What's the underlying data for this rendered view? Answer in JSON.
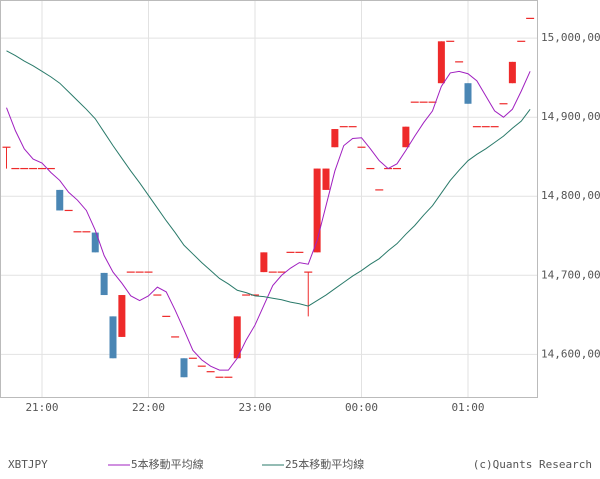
{
  "chart_data": {
    "type": "candlestick",
    "symbol": "XBTJPY",
    "credit": "(c)Quants Research",
    "categories": [
      null,
      null,
      null,
      null,
      "21:00",
      null,
      null,
      null,
      null,
      null,
      null,
      null,
      null,
      null,
      null,
      null,
      "22:00",
      null,
      null,
      null,
      null,
      null,
      null,
      null,
      null,
      null,
      null,
      null,
      "23:00",
      null,
      null,
      null,
      null,
      null,
      null,
      null,
      null,
      null,
      null,
      null,
      "00:00",
      null,
      null,
      null,
      null,
      null,
      null,
      null,
      null,
      null,
      null,
      null,
      "01:00",
      null,
      null,
      null,
      null,
      null,
      null,
      null
    ],
    "open": [
      14862,
      14835,
      14835,
      14835,
      14835,
      14835,
      14808,
      14782,
      14755,
      14755,
      14754,
      14703,
      14648,
      14622,
      14704,
      14704,
      14704,
      14675,
      14648,
      14622,
      14595,
      14595,
      14585,
      14578,
      14571,
      14571,
      14595,
      14675,
      14675,
      14704,
      14704,
      14704,
      14729,
      14729,
      14704,
      14729,
      14808,
      14862,
      14888,
      14888,
      14862,
      14835,
      14808,
      14835,
      14835,
      14862,
      14919,
      14919,
      14919,
      14943,
      14996,
      14970,
      14943,
      14888,
      14888,
      14888,
      14917,
      14943,
      14996,
      15025
    ],
    "high": [
      14862,
      14835,
      14835,
      14835,
      14835,
      14835,
      14808,
      14782,
      14755,
      14755,
      14754,
      14703,
      14648,
      14675,
      14704,
      14704,
      14704,
      14675,
      14648,
      14622,
      14595,
      14595,
      14585,
      14578,
      14571,
      14571,
      14648,
      14675,
      14675,
      14729,
      14704,
      14704,
      14729,
      14729,
      14704,
      14835,
      14835,
      14885,
      14888,
      14888,
      14862,
      14835,
      14808,
      14835,
      14835,
      14888,
      14919,
      14919,
      14919,
      14996,
      14996,
      14970,
      14943,
      14888,
      14888,
      14888,
      14917,
      14970,
      14996,
      15025
    ],
    "low": [
      14835,
      14835,
      14835,
      14835,
      14835,
      14835,
      14782,
      14782,
      14755,
      14755,
      14729,
      14675,
      14595,
      14622,
      14704,
      14704,
      14704,
      14675,
      14648,
      14622,
      14571,
      14595,
      14585,
      14578,
      14571,
      14571,
      14595,
      14675,
      14675,
      14704,
      14704,
      14704,
      14729,
      14729,
      14648,
      14729,
      14808,
      14862,
      14888,
      14888,
      14862,
      14835,
      14808,
      14835,
      14835,
      14862,
      14919,
      14919,
      14919,
      14943,
      14996,
      14970,
      14917,
      14888,
      14888,
      14888,
      14917,
      14943,
      14996,
      15025
    ],
    "close": [
      14862,
      14835,
      14835,
      14835,
      14835,
      14835,
      14782,
      14782,
      14755,
      14755,
      14729,
      14675,
      14595,
      14675,
      14704,
      14704,
      14704,
      14675,
      14648,
      14622,
      14571,
      14595,
      14585,
      14578,
      14571,
      14571,
      14648,
      14675,
      14675,
      14729,
      14704,
      14704,
      14729,
      14729,
      14704,
      14835,
      14835,
      14885,
      14888,
      14888,
      14862,
      14835,
      14808,
      14835,
      14835,
      14888,
      14919,
      14919,
      14919,
      14996,
      14996,
      14970,
      14917,
      14888,
      14888,
      14888,
      14917,
      14970,
      14996,
      15025
    ],
    "up_color": "#ee2a2a",
    "down_color": "#4a86b4",
    "series": [
      {
        "name": "5本移動平均線",
        "color": "#a020c0",
        "values": [
          14912,
          14883,
          14860,
          14847,
          14842,
          14830,
          14820,
          14805,
          14795,
          14782,
          14757,
          14725,
          14704,
          14690,
          14674,
          14668,
          14674,
          14685,
          14679,
          14656,
          14631,
          14605,
          14593,
          14585,
          14580,
          14580,
          14595,
          14618,
          14637,
          14662,
          14687,
          14700,
          14709,
          14716,
          14714,
          14744,
          14788,
          14832,
          14864,
          14873,
          14874,
          14860,
          14845,
          14835,
          14841,
          14858,
          14876,
          14893,
          14908,
          14939,
          14956,
          14958,
          14955,
          14946,
          14927,
          14908,
          14900,
          14910,
          14933,
          14958
        ]
      },
      {
        "name": "25本移動平均線",
        "color": "#2a7a6a",
        "values": [
          14984,
          14978,
          14971,
          14965,
          14958,
          14951,
          14943,
          14932,
          14921,
          14910,
          14898,
          14881,
          14864,
          14848,
          14832,
          14817,
          14801,
          14785,
          14769,
          14754,
          14738,
          14727,
          14716,
          14706,
          14696,
          14689,
          14681,
          14678,
          14674,
          14673,
          14671,
          14669,
          14666,
          14664,
          14661,
          14668,
          14675,
          14683,
          14691,
          14699,
          14706,
          14714,
          14721,
          14731,
          14740,
          14752,
          14763,
          14776,
          14788,
          14804,
          14820,
          14833,
          14845,
          14853,
          14860,
          14868,
          14876,
          14886,
          14895,
          14910
        ]
      }
    ],
    "ylim": [
      14546,
      15047
    ],
    "yticks": [
      {
        "value": 14600,
        "label": "14,600,00"
      },
      {
        "value": 14700,
        "label": "14,700,00"
      },
      {
        "value": 14800,
        "label": "14,800,00"
      },
      {
        "value": 14900,
        "label": "14,900,00"
      },
      {
        "value": 15000,
        "label": "15,000,00"
      }
    ],
    "grid": true
  }
}
